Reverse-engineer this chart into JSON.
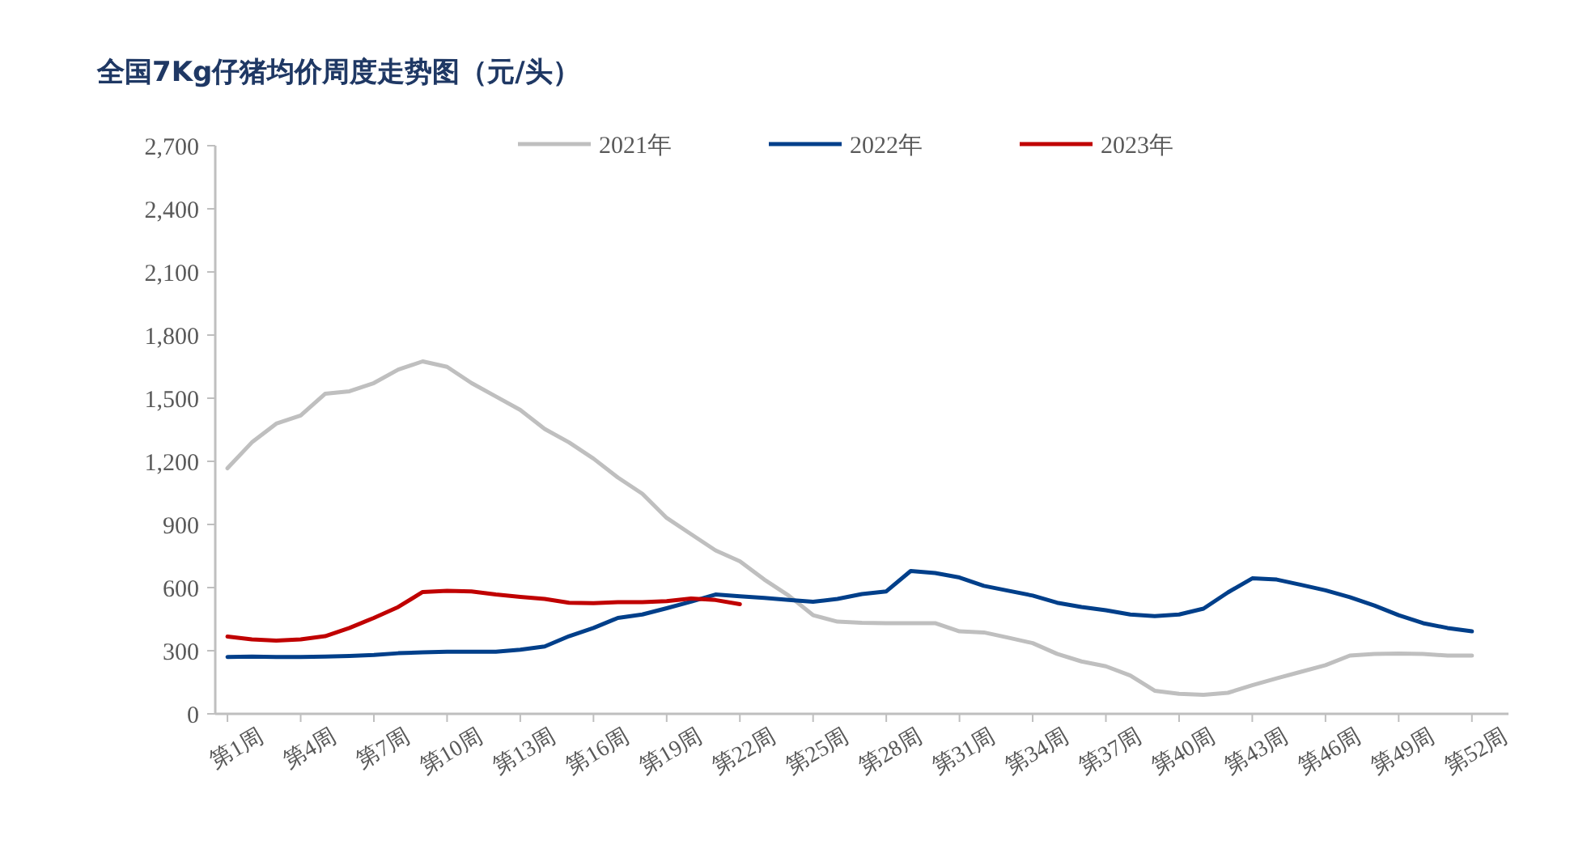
{
  "chart_data": {
    "type": "line",
    "title": "全国7Kg仔猪均价周度走势图（元/头）",
    "categories": [
      "第1周",
      null,
      null,
      "第4周",
      null,
      null,
      "第7周",
      null,
      null,
      "第10周",
      null,
      null,
      "第13周",
      null,
      null,
      "第16周",
      null,
      null,
      "第19周",
      null,
      null,
      "第22周",
      null,
      null,
      "第25周",
      null,
      null,
      "第28周",
      null,
      null,
      "第31周",
      null,
      null,
      "第34周",
      null,
      null,
      "第37周",
      null,
      null,
      "第40周",
      null,
      null,
      "第43周",
      null,
      null,
      "第46周",
      null,
      null,
      "第49周",
      null,
      null,
      "第52周"
    ],
    "series": [
      {
        "name": "2021年",
        "color": "#bfbfbf",
        "values": [
          1167,
          1290,
          1379,
          1418,
          1521,
          1533,
          1572,
          1636,
          1675,
          1649,
          1572,
          1508,
          1444,
          1354,
          1290,
          1213,
          1123,
          1046,
          931,
          854,
          777,
          725,
          638,
          562,
          469,
          438,
          433,
          431,
          431,
          431,
          392,
          387,
          362,
          336,
          285,
          249,
          226,
          182,
          110,
          95,
          90,
          100,
          136,
          169,
          200,
          231,
          277,
          285,
          287,
          285,
          277,
          277
        ]
      },
      {
        "name": "2022年",
        "color": "#003f8a",
        "values": [
          270,
          272,
          270,
          270,
          272,
          275,
          280,
          288,
          292,
          295,
          295,
          295,
          305,
          320,
          369,
          408,
          456,
          472,
          502,
          533,
          567,
          559,
          551,
          541,
          533,
          546,
          569,
          582,
          679,
          669,
          648,
          608,
          585,
          562,
          528,
          508,
          492,
          472,
          464,
          472,
          500,
          577,
          644,
          638,
          613,
          587,
          554,
          515,
          469,
          431,
          408,
          392
        ]
      },
      {
        "name": "2023年",
        "color": "#c00000",
        "values": [
          367,
          354,
          348,
          354,
          369,
          408,
          456,
          508,
          579,
          585,
          582,
          567,
          556,
          546,
          528,
          526,
          531,
          531,
          536,
          548,
          541,
          521,
          null,
          null,
          null,
          null,
          null,
          null,
          null,
          null,
          null,
          null,
          null,
          null,
          null,
          null,
          null,
          null,
          null,
          null,
          null,
          null,
          null,
          null,
          null,
          null,
          null,
          null,
          null,
          null,
          null,
          null
        ]
      }
    ],
    "ylim": [
      0,
      2700
    ],
    "yticks": [
      {
        "value": 0,
        "label": "0"
      },
      {
        "value": 300,
        "label": "300"
      },
      {
        "value": 600,
        "label": "600"
      },
      {
        "value": 900,
        "label": "900"
      },
      {
        "value": 1200,
        "label": "1,200"
      },
      {
        "value": 1500,
        "label": "1,500"
      },
      {
        "value": 1800,
        "label": "1,800"
      },
      {
        "value": 2100,
        "label": "2,100"
      },
      {
        "value": 2400,
        "label": "2,400"
      },
      {
        "value": 2700,
        "label": "2,700"
      }
    ],
    "grid": false,
    "legend": "top",
    "marker": "none",
    "line_style": "solid"
  }
}
